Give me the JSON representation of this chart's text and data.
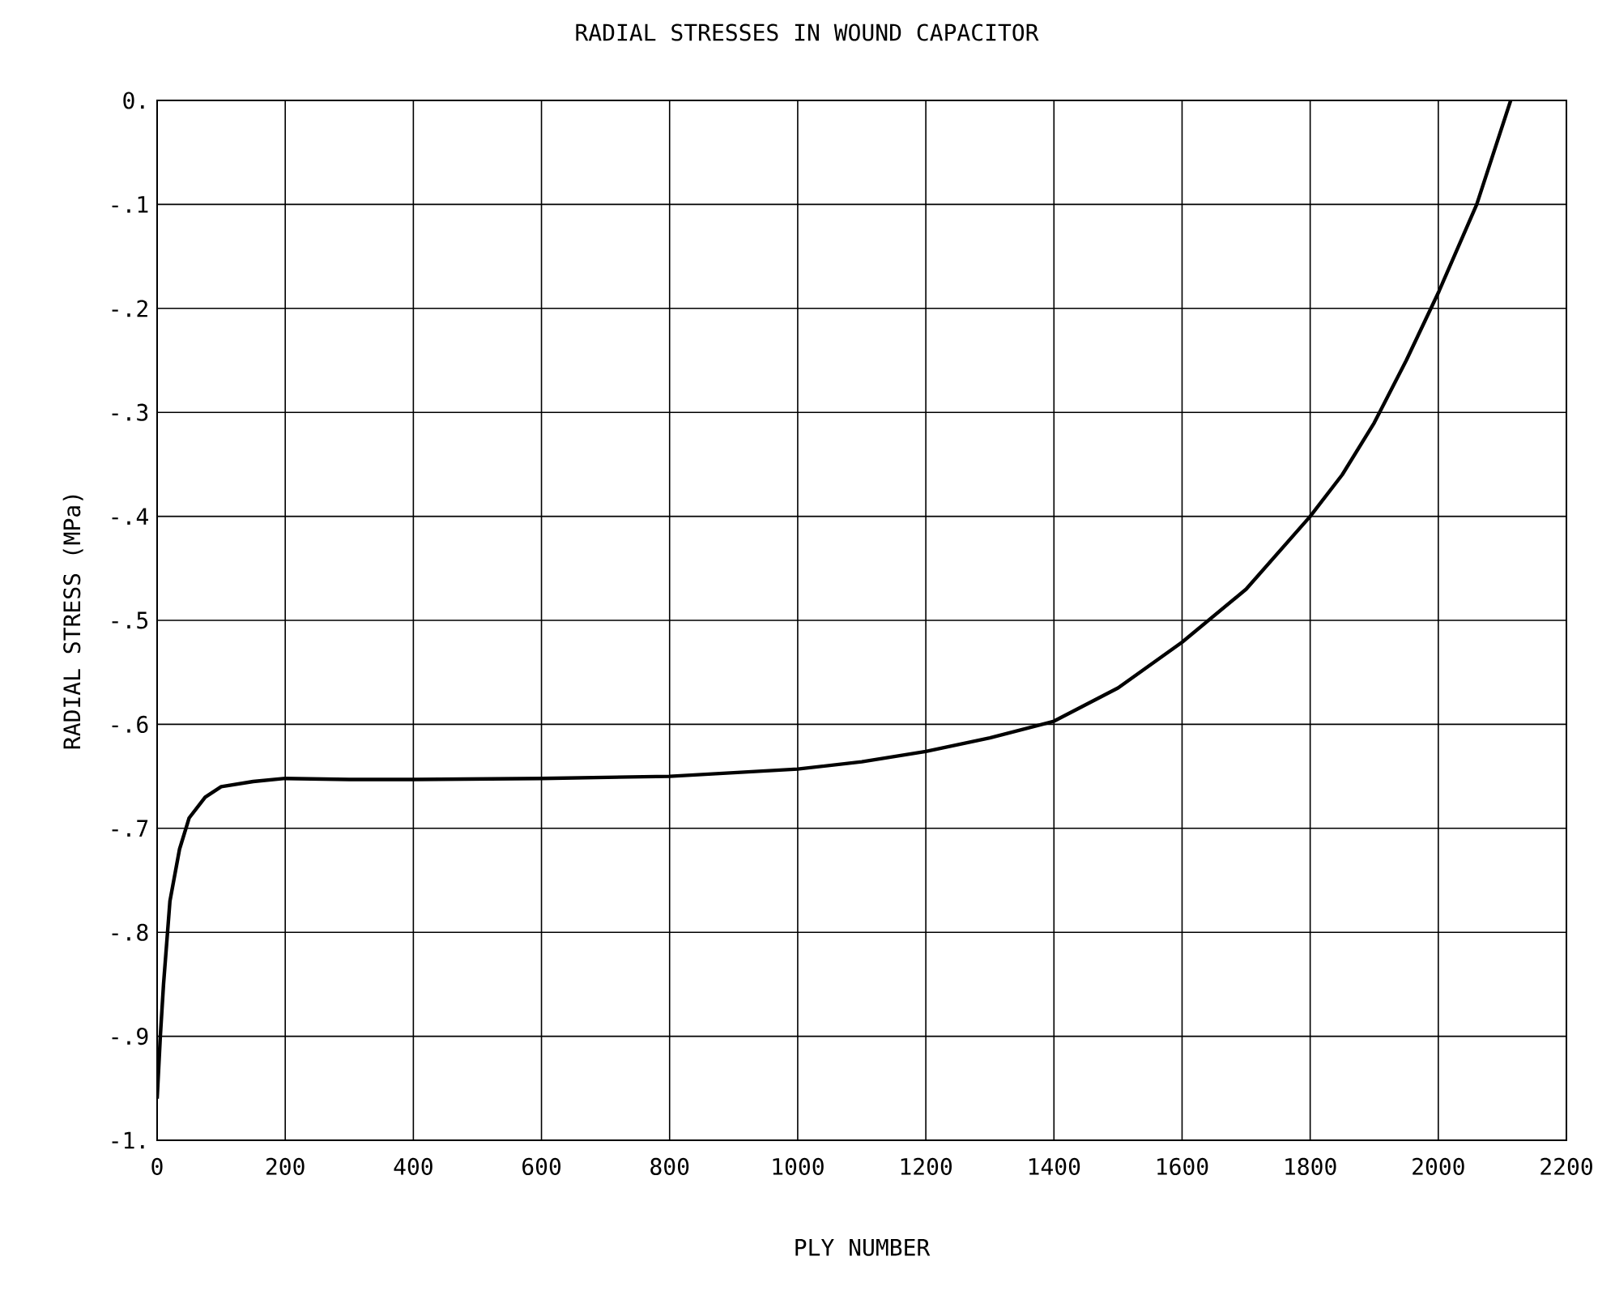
{
  "chart_data": {
    "type": "line",
    "title": "RADIAL STRESSES IN WOUND CAPACITOR",
    "xlabel": "PLY NUMBER",
    "ylabel": "RADIAL STRESS (MPa)",
    "series": [
      {
        "color": "#000000",
        "x": [
          0,
          5,
          10,
          20,
          35,
          50,
          75,
          100,
          150,
          200,
          300,
          400,
          600,
          800,
          1000,
          1100,
          1200,
          1300,
          1400,
          1500,
          1600,
          1700,
          1800,
          1850,
          1900,
          1950,
          2000,
          2060,
          2113
        ],
        "values": [
          -0.96,
          -0.9,
          -0.85,
          -0.77,
          -0.72,
          -0.69,
          -0.67,
          -0.66,
          -0.655,
          -0.652,
          -0.653,
          -0.653,
          -0.652,
          -0.65,
          -0.643,
          -0.636,
          -0.626,
          -0.613,
          -0.597,
          -0.565,
          -0.521,
          -0.47,
          -0.4,
          -0.36,
          -0.31,
          -0.25,
          -0.185,
          -0.1,
          0
        ]
      }
    ],
    "xlim": [
      0,
      2200
    ],
    "ylim": [
      -1,
      0
    ],
    "xticks": [
      0,
      200,
      400,
      600,
      800,
      1000,
      1200,
      1400,
      1600,
      1800,
      2000,
      2200
    ],
    "yticks": [
      {
        "value": 0,
        "label": "0."
      },
      {
        "value": -0.1,
        "label": "-.1"
      },
      {
        "value": -0.2,
        "label": "-.2"
      },
      {
        "value": -0.3,
        "label": "-.3"
      },
      {
        "value": -0.4,
        "label": "-.4"
      },
      {
        "value": -0.5,
        "label": "-.5"
      },
      {
        "value": -0.6,
        "label": "-.6"
      },
      {
        "value": -0.7,
        "label": "-.7"
      },
      {
        "value": -0.8,
        "label": "-.8"
      },
      {
        "value": -0.9,
        "label": "-.9"
      },
      {
        "value": -1,
        "label": "-1."
      }
    ],
    "grid": true,
    "marker": "none",
    "line_style": "solid"
  }
}
